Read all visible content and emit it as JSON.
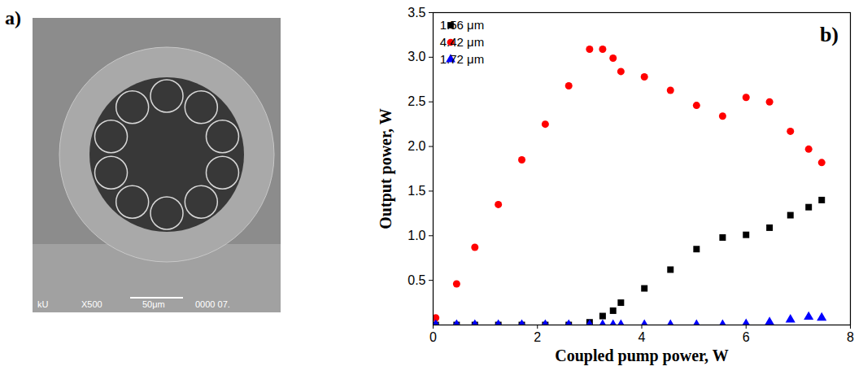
{
  "chart_data": {
    "type": "scatter",
    "x_label": "Coupled pump power, W",
    "y_label": "Output power, W",
    "annotations": [
      "b)"
    ],
    "x": [
      0.05,
      0.45,
      0.8,
      1.25,
      1.7,
      2.15,
      2.6,
      3.0,
      3.25,
      3.45,
      3.6,
      4.05,
      4.55,
      5.05,
      5.55,
      6.0,
      6.45,
      6.85,
      7.2,
      7.45
    ],
    "series": [
      {
        "name": "1.56 μm",
        "color": "#000000",
        "marker": "square",
        "values": [
          0,
          0,
          0,
          0,
          0,
          0,
          0,
          0.03,
          0.1,
          0.16,
          0.25,
          0.41,
          0.62,
          0.85,
          0.98,
          1.01,
          1.09,
          1.23,
          1.32,
          1.4
        ]
      },
      {
        "name": "4.42 μm",
        "color": "#ff0000",
        "marker": "circle",
        "values": [
          0.08,
          0.46,
          0.87,
          1.35,
          1.85,
          2.25,
          2.68,
          3.09,
          3.09,
          2.99,
          2.84,
          2.78,
          2.63,
          2.46,
          2.34,
          2.55,
          2.5,
          2.17,
          1.97,
          1.82
        ]
      },
      {
        "name": "1.72 μm",
        "color": "#0000ff",
        "marker": "triangle",
        "values": [
          0,
          0,
          0,
          0,
          0,
          0,
          0,
          0,
          0,
          0,
          0,
          0,
          0,
          0,
          0,
          0.01,
          0.03,
          0.06,
          0.09,
          0.08
        ]
      }
    ],
    "xlim": [
      0,
      8
    ],
    "xticks": [
      0,
      2,
      4,
      6,
      8
    ],
    "ylim": [
      0,
      3.5
    ],
    "yticks": [
      0.5,
      {
        "value": 1,
        "label": "1.0"
      },
      1.5,
      {
        "value": 2,
        "label": "2.0"
      },
      2.5,
      {
        "value": 3,
        "label": "3.0"
      },
      3.5
    ],
    "legend": "top-left",
    "grid": false
  },
  "image_panel": {
    "label": "a)",
    "texts": [
      "kU",
      "X500",
      "50μm",
      "0000 07."
    ]
  }
}
